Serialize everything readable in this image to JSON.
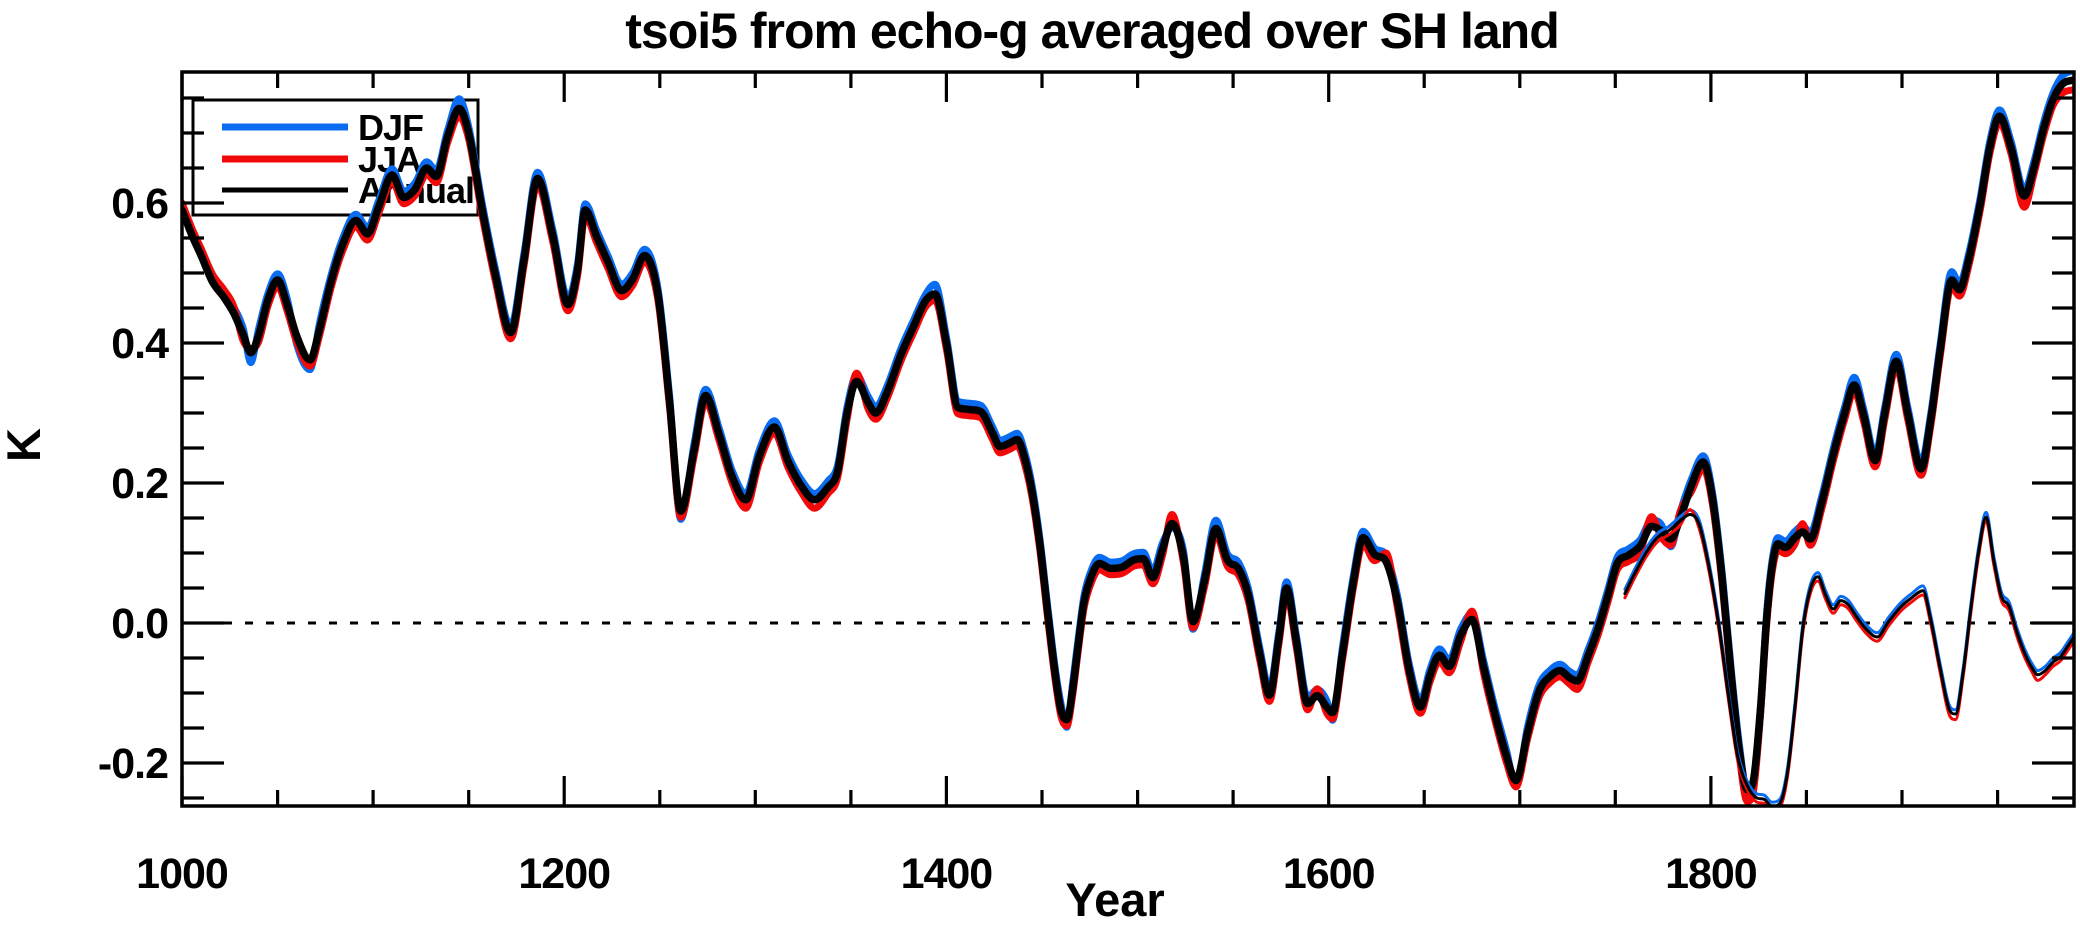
{
  "figure": {
    "background_color": "#FFFFFF",
    "frame_color": "#000000"
  },
  "chart_data": {
    "type": "line",
    "title": "tsoi5 from echo-g averaged over SH land",
    "xlabel": "Year",
    "ylabel": "K",
    "x_range": [
      1000,
      1990
    ],
    "y_range": [
      -0.2614,
      0.7871
    ],
    "x_major_ticks": [
      1000,
      1200,
      1400,
      1600,
      1800
    ],
    "x_minor_tick_step": 50,
    "y_major_ticks": [
      -0.2,
      0.0,
      0.2,
      0.4,
      0.6
    ],
    "y_tick_labels": [
      "-0.2",
      "0.0",
      "0.2",
      "0.4",
      "0.6"
    ],
    "y_minor_tick_step": 0.05,
    "grid": "off",
    "zero_reference_line": {
      "y": 0.0,
      "style": "dotted",
      "color": "#000000"
    },
    "legend": {
      "position": "top-left",
      "entries": [
        {
          "label": "DJF",
          "color": "#0A6CF0"
        },
        {
          "label": "JJA",
          "color": "#F20A0A"
        },
        {
          "label": "Annual",
          "color": "#000000"
        }
      ]
    },
    "series_info": [
      {
        "name": "DJF",
        "color": "#0A6CF0",
        "style": "thick smoothed, 1000-1990"
      },
      {
        "name": "JJA",
        "color": "#F20A0A",
        "style": "thick smoothed, 1000-1990"
      },
      {
        "name": "Annual",
        "color": "#000000",
        "style": "thick smoothed, 1000-1990"
      },
      {
        "name": "DJF thin branch",
        "color": "#0A6CF0",
        "style": "thin, 1755-1990"
      },
      {
        "name": "JJA thin branch",
        "color": "#F20A0A",
        "style": "thin, 1755-1990"
      },
      {
        "name": "Annual thin branch",
        "color": "#000000",
        "style": "thin, 1755-1990"
      }
    ],
    "smoothed": {
      "years": [
        1000,
        1005,
        1010,
        1016,
        1022,
        1027,
        1032,
        1036,
        1040,
        1045,
        1050,
        1055,
        1060,
        1067,
        1072,
        1078,
        1084,
        1091,
        1097,
        1103,
        1110,
        1116,
        1122,
        1128,
        1133,
        1139,
        1145,
        1150,
        1157,
        1164,
        1172,
        1179,
        1186,
        1194,
        1202,
        1207,
        1211,
        1217,
        1223,
        1230,
        1236,
        1242,
        1249,
        1255,
        1261,
        1268,
        1274,
        1281,
        1288,
        1295,
        1302,
        1310,
        1317,
        1324,
        1331,
        1338,
        1343,
        1348,
        1353,
        1359,
        1363,
        1369,
        1376,
        1383,
        1389,
        1394,
        1400,
        1406,
        1412,
        1418,
        1424,
        1428,
        1433,
        1437,
        1441,
        1445,
        1449,
        1453,
        1457,
        1460,
        1463,
        1466,
        1469,
        1472,
        1476,
        1480,
        1486,
        1492,
        1498,
        1503,
        1508,
        1513,
        1518,
        1524,
        1529,
        1535,
        1541,
        1547,
        1553,
        1558,
        1564,
        1569,
        1574,
        1578,
        1583,
        1589,
        1594,
        1599,
        1602,
        1607,
        1613,
        1618,
        1624,
        1630,
        1636,
        1642,
        1648,
        1653,
        1658,
        1663,
        1669,
        1675,
        1681,
        1687,
        1693,
        1698,
        1704,
        1710,
        1716,
        1721,
        1726,
        1730,
        1736,
        1741,
        1746,
        1751,
        1757,
        1763,
        1769,
        1774,
        1779,
        1784,
        1790,
        1796,
        1801,
        1806,
        1811,
        1815,
        1819,
        1822,
        1826,
        1829,
        1832,
        1835,
        1839,
        1844,
        1848,
        1852,
        1858,
        1864,
        1870,
        1875,
        1880,
        1886,
        1891,
        1897,
        1903,
        1910,
        1915,
        1920,
        1926,
        1930,
        1935,
        1941,
        1946,
        1951,
        1957,
        1964,
        1969,
        1974,
        1979,
        1984,
        1990
      ],
      "annual": [
        0.59,
        0.555,
        0.525,
        0.487,
        0.465,
        0.443,
        0.412,
        0.386,
        0.41,
        0.462,
        0.49,
        0.455,
        0.41,
        0.376,
        0.42,
        0.488,
        0.54,
        0.575,
        0.556,
        0.595,
        0.64,
        0.608,
        0.62,
        0.65,
        0.638,
        0.695,
        0.735,
        0.7,
        0.592,
        0.497,
        0.415,
        0.52,
        0.635,
        0.553,
        0.455,
        0.505,
        0.59,
        0.552,
        0.515,
        0.475,
        0.492,
        0.525,
        0.47,
        0.32,
        0.16,
        0.248,
        0.325,
        0.27,
        0.208,
        0.176,
        0.238,
        0.28,
        0.232,
        0.196,
        0.176,
        0.194,
        0.216,
        0.3,
        0.345,
        0.315,
        0.3,
        0.33,
        0.382,
        0.425,
        0.46,
        0.47,
        0.4,
        0.308,
        0.305,
        0.302,
        0.272,
        0.252,
        0.257,
        0.262,
        0.235,
        0.185,
        0.11,
        0.015,
        -0.075,
        -0.125,
        -0.138,
        -0.095,
        -0.03,
        0.03,
        0.068,
        0.085,
        0.078,
        0.08,
        0.09,
        0.092,
        0.065,
        0.105,
        0.142,
        0.095,
        0.002,
        0.06,
        0.135,
        0.09,
        0.077,
        0.04,
        -0.045,
        -0.103,
        -0.02,
        0.05,
        -0.025,
        -0.115,
        -0.104,
        -0.12,
        -0.128,
        -0.048,
        0.06,
        0.122,
        0.098,
        0.088,
        0.03,
        -0.065,
        -0.12,
        -0.075,
        -0.046,
        -0.062,
        -0.018,
        0.005,
        -0.062,
        -0.13,
        -0.19,
        -0.225,
        -0.158,
        -0.098,
        -0.076,
        -0.068,
        -0.078,
        -0.083,
        -0.045,
        -0.008,
        0.038,
        0.085,
        0.097,
        0.11,
        0.138,
        0.132,
        0.12,
        0.15,
        0.198,
        0.23,
        0.175,
        0.06,
        -0.085,
        -0.185,
        -0.238,
        -0.228,
        -0.12,
        0.0,
        0.08,
        0.113,
        0.108,
        0.122,
        0.13,
        0.12,
        0.172,
        0.24,
        0.3,
        0.34,
        0.296,
        0.232,
        0.3,
        0.374,
        0.3,
        0.22,
        0.29,
        0.39,
        0.49,
        0.476,
        0.52,
        0.6,
        0.68,
        0.724,
        0.68,
        0.61,
        0.65,
        0.705,
        0.748,
        0.77,
        0.776
      ],
      "djf_offset_default": 0.009,
      "jja_offset_default": -0.009,
      "djf_offset_overrides": {
        "1036": -0.014,
        "1060": -0.012,
        "1067": -0.014,
        "1145": 0.014,
        "1261": -0.012,
        "1394": 0.014,
        "1463": -0.011,
        "1518": -0.006,
        "1529": -0.011,
        "1541": 0.012,
        "1602": -0.011,
        "1698": -0.009,
        "1779": -0.011,
        "1819": -0.004,
        "1822": -0.004,
        "1826": -0.01,
        "1875": 0.011,
        "1897": 0.01,
        "1926": 0.012,
        "1984": 0.012,
        "1990": 0.013
      },
      "jja_offset_overrides": {
        "1000": 0.01,
        "1005": 0.01,
        "1010": 0.01,
        "1016": 0.011,
        "1022": 0.011,
        "1027": 0.01,
        "1036": 0.006,
        "1145": -0.011,
        "1295": -0.012,
        "1331": -0.012,
        "1353": 0.012,
        "1518": 0.013,
        "1594": 0.01,
        "1630": 0.012,
        "1675": 0.012,
        "1730": -0.012,
        "1769": 0.014,
        "1784": 0.01,
        "1819": -0.017,
        "1822": -0.016,
        "1848": 0.012,
        "1964": -0.016,
        "1984": -0.013,
        "1990": -0.014
      }
    },
    "thin_branch": {
      "note": "thin companion curves visible from ~1755 to 1990",
      "years": [
        1755,
        1760,
        1766,
        1772,
        1778,
        1784,
        1789,
        1794,
        1799,
        1804,
        1809,
        1814,
        1819,
        1824,
        1828,
        1832,
        1836,
        1840,
        1844,
        1848,
        1852,
        1856,
        1860,
        1864,
        1868,
        1872,
        1876,
        1881,
        1887,
        1893,
        1899,
        1905,
        1911,
        1915,
        1920,
        1925,
        1928,
        1932,
        1936,
        1940,
        1944,
        1948,
        1952,
        1956,
        1960,
        1964,
        1968,
        1971,
        1975,
        1979,
        1983,
        1987,
        1990
      ],
      "annual": [
        0.042,
        0.07,
        0.1,
        0.122,
        0.132,
        0.146,
        0.155,
        0.14,
        0.08,
        0.0,
        -0.1,
        -0.19,
        -0.232,
        -0.25,
        -0.252,
        -0.262,
        -0.258,
        -0.215,
        -0.12,
        -0.01,
        0.048,
        0.066,
        0.04,
        0.02,
        0.032,
        0.026,
        0.01,
        -0.008,
        -0.02,
        0.002,
        0.022,
        0.036,
        0.046,
        0.005,
        -0.065,
        -0.125,
        -0.13,
        -0.07,
        0.02,
        0.1,
        0.151,
        0.09,
        0.038,
        0.024,
        -0.012,
        -0.042,
        -0.064,
        -0.074,
        -0.068,
        -0.056,
        -0.048,
        -0.032,
        -0.02
      ],
      "djf_offset_default": 0.006,
      "jja_offset_default": -0.006,
      "djf_offset_overrides": {
        "1911": 0.007,
        "1944": 0.007
      },
      "jja_offset_overrides": {
        "1789": 0.007,
        "1925": -0.008,
        "1928": -0.008,
        "1971": -0.008
      }
    }
  }
}
